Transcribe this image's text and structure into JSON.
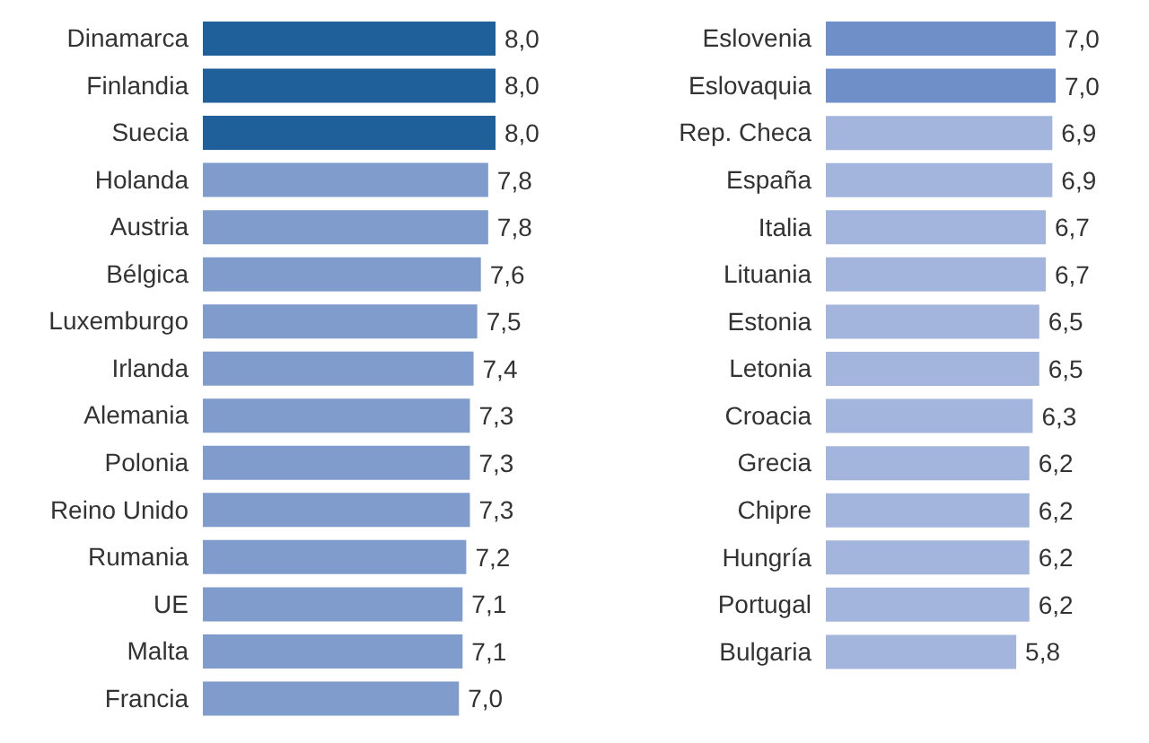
{
  "chart_data": [
    {
      "type": "bar",
      "orientation": "horizontal",
      "categories": [
        "Dinamarca",
        "Finlandia",
        "Suecia",
        "Holanda",
        "Austria",
        "Bélgica",
        "Luxemburgo",
        "Irlanda",
        "Alemania",
        "Polonia",
        "Reino Unido",
        "Rumania",
        "UE",
        "Malta",
        "Francia"
      ],
      "values": [
        8.0,
        8.0,
        8.0,
        7.8,
        7.8,
        7.6,
        7.5,
        7.4,
        7.3,
        7.3,
        7.3,
        7.2,
        7.1,
        7.1,
        7.0
      ],
      "value_labels": [
        "8,0",
        "8,0",
        "8,0",
        "7,8",
        "7,8",
        "7,6",
        "7,5",
        "7,4",
        "7,3",
        "7,3",
        "7,3",
        "7,2",
        "7,1",
        "7,1",
        "7,0"
      ],
      "colors": [
        "#1f5f9a",
        "#1f5f9a",
        "#1f5f9a",
        "#7f9ccc",
        "#7f9ccc",
        "#7f9ccc",
        "#7f9ccc",
        "#7f9ccc",
        "#7f9ccc",
        "#7f9ccc",
        "#7f9ccc",
        "#7f9ccc",
        "#7f9ccc",
        "#7f9ccc",
        "#7f9ccc"
      ]
    },
    {
      "type": "bar",
      "orientation": "horizontal",
      "categories": [
        "Eslovenia",
        "Eslovaquia",
        "Rep. Checa",
        "España",
        "Italia",
        "Lituania",
        "Estonia",
        "Letonia",
        "Croacia",
        "Grecia",
        "Chipre",
        "Hungría",
        "Portugal",
        "Bulgaria"
      ],
      "values": [
        7.0,
        7.0,
        6.9,
        6.9,
        6.7,
        6.7,
        6.5,
        6.5,
        6.3,
        6.2,
        6.2,
        6.2,
        6.2,
        5.8
      ],
      "value_labels": [
        "7,0",
        "7,0",
        "6,9",
        "6,9",
        "6,7",
        "6,7",
        "6,5",
        "6,5",
        "6,3",
        "6,2",
        "6,2",
        "6,2",
        "6,2",
        "5,8"
      ],
      "colors": [
        "#6f8fc8",
        "#6f8fc8",
        "#a3b5dc",
        "#a3b5dc",
        "#a3b5dc",
        "#a3b5dc",
        "#a3b5dc",
        "#a3b5dc",
        "#a3b5dc",
        "#a3b5dc",
        "#a3b5dc",
        "#a3b5dc",
        "#a3b5dc",
        "#a3b5dc"
      ]
    }
  ]
}
